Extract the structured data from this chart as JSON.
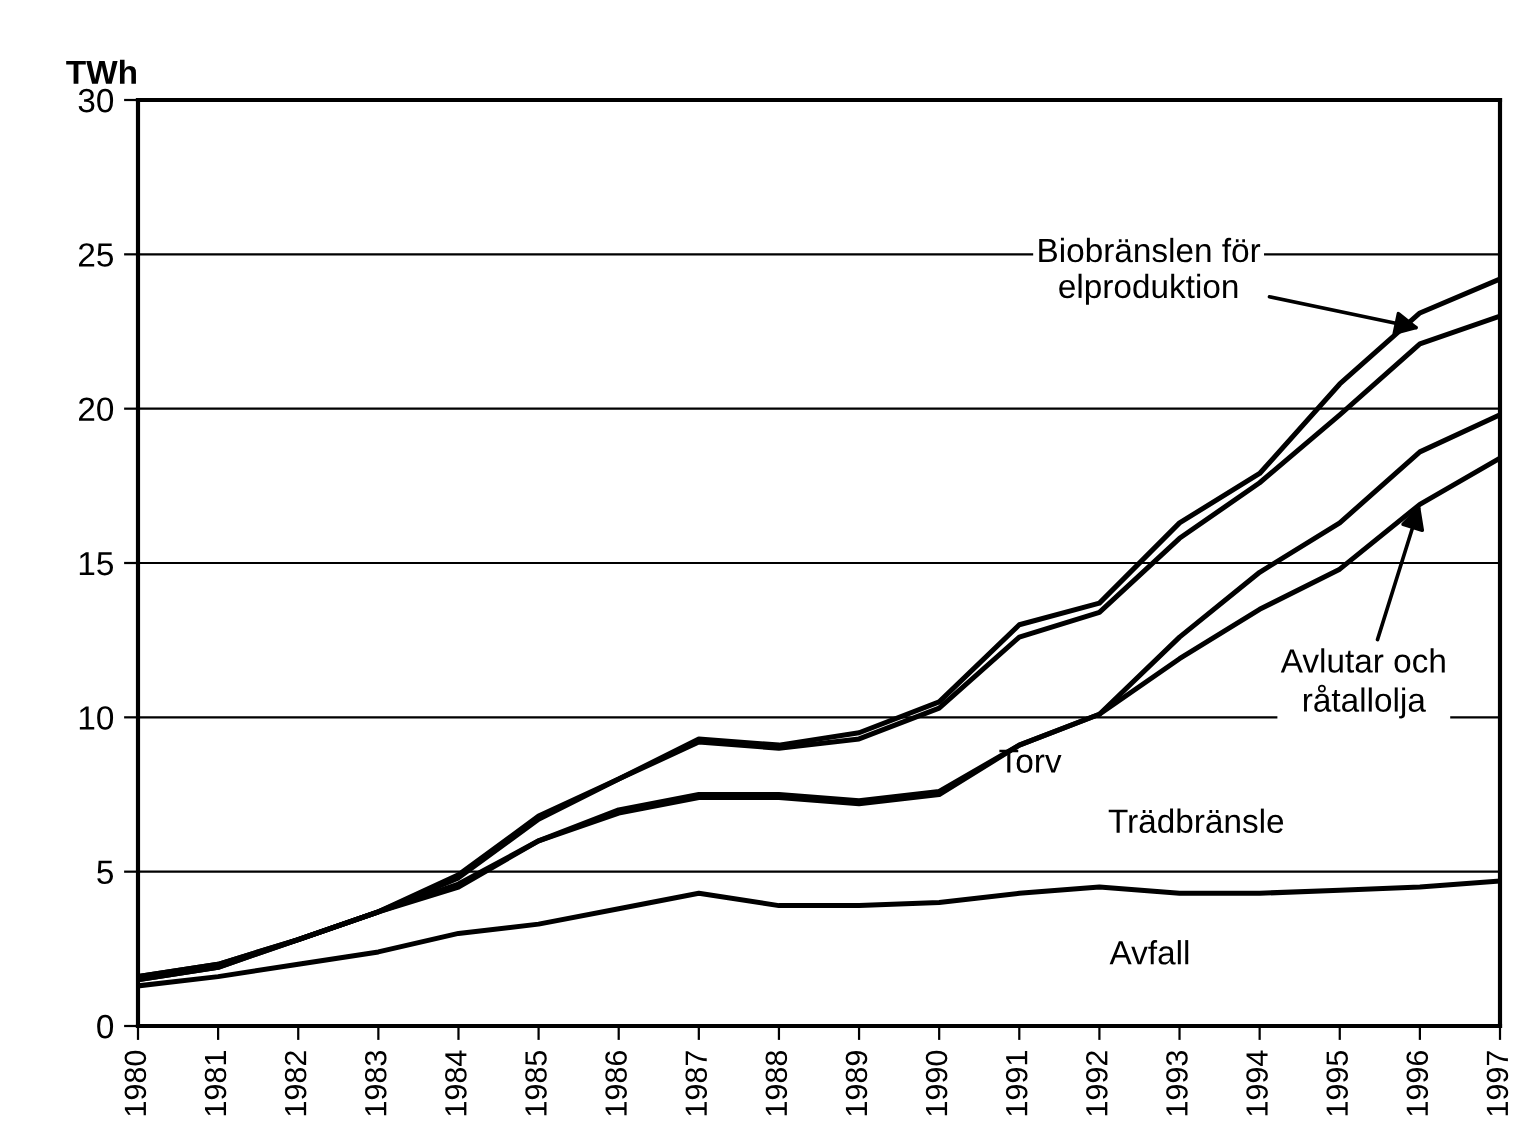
{
  "chart_data": {
    "type": "line",
    "ylabel": "TWh",
    "categories": [
      "1980",
      "1981",
      "1982",
      "1983",
      "1984",
      "1985",
      "1986",
      "1987",
      "1988",
      "1989",
      "1990",
      "1991",
      "1992",
      "1993",
      "1994",
      "1995",
      "1996",
      "1997"
    ],
    "series": [
      {
        "color": "#000000",
        "values": [
          1.3,
          1.6,
          2.0,
          2.4,
          3.0,
          3.3,
          3.8,
          4.3,
          3.9,
          3.9,
          4.0,
          4.3,
          4.5,
          4.3,
          4.3,
          4.4,
          4.5,
          4.7
        ]
      },
      {
        "color": "#000000",
        "values": [
          1.5,
          1.9,
          2.8,
          3.7,
          4.5,
          6.0,
          6.9,
          7.4,
          7.4,
          7.2,
          7.5,
          9.1,
          10.1,
          11.9,
          13.5,
          14.8,
          16.9,
          18.4
        ]
      },
      {
        "color": "#000000",
        "values": [
          1.5,
          1.9,
          2.8,
          3.7,
          4.6,
          6.0,
          7.0,
          7.5,
          7.5,
          7.3,
          7.6,
          9.1,
          10.1,
          12.6,
          14.7,
          16.3,
          18.6,
          19.8
        ]
      },
      {
        "color": "#000000",
        "values": [
          1.6,
          2.0,
          2.8,
          3.7,
          4.8,
          6.7,
          8.0,
          9.2,
          9.0,
          9.3,
          10.3,
          12.6,
          13.4,
          15.8,
          17.6,
          19.8,
          22.1,
          23.0
        ]
      },
      {
        "color": "#000000",
        "values": [
          1.6,
          2.0,
          2.8,
          3.7,
          4.9,
          6.8,
          8.0,
          9.3,
          9.1,
          9.5,
          10.5,
          13.0,
          13.7,
          16.3,
          17.9,
          20.8,
          23.1,
          24.2
        ]
      }
    ],
    "annotations": [
      "Avfall",
      "Trädbränsle",
      "Torv",
      {
        "text": "Avlutar och\nråtallolja",
        "x": "1996",
        "y": 16.9
      },
      {
        "text": "Biobränslen för\nelproduktion",
        "x": "1996",
        "y": 22.6
      }
    ],
    "ylim": [
      0,
      30
    ],
    "yticks": [
      0,
      5,
      10,
      15,
      20,
      25,
      30
    ],
    "grid": "y",
    "legend": false,
    "line_style": "solid",
    "marker": "none"
  }
}
